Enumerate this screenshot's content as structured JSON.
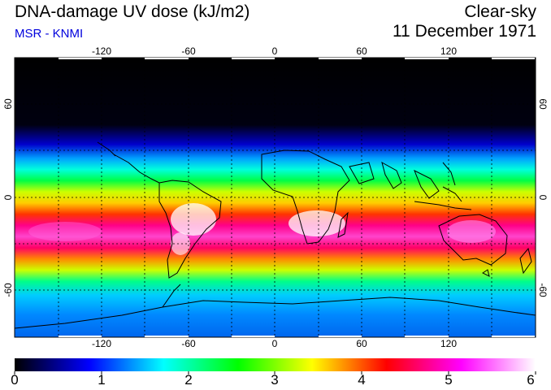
{
  "header": {
    "title": "DNA-damage UV dose (kJ/m2)",
    "source": "MSR - KNMI",
    "condition": "Clear-sky",
    "date": "11 December 1971"
  },
  "map": {
    "lon_ticks": [
      "-120",
      "-60",
      "0",
      "60",
      "120"
    ],
    "lat_ticks_left": [
      "60",
      "0",
      "-60"
    ],
    "lat_ticks_right": [
      "60",
      "0",
      "-60"
    ]
  },
  "colorbar": {
    "min": 0,
    "max": 6,
    "labels": [
      "0",
      "1",
      "2",
      "3",
      "4",
      "5",
      "6"
    ],
    "colors": [
      "#000000",
      "#0000ff",
      "#00ffff",
      "#00ff00",
      "#ffff00",
      "#ff0000",
      "#ff00ff",
      "#ffffff"
    ]
  }
}
